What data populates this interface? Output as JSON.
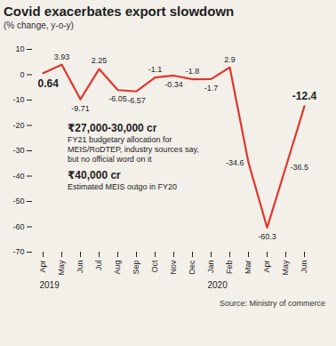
{
  "chart_data": {
    "type": "line",
    "title": "Covid exacerbates export slowdown",
    "subtitle": "(% change, y-o-y)",
    "categories": [
      "Apr",
      "May",
      "Jun",
      "Jul",
      "Aug",
      "Sep",
      "Oct",
      "Nov",
      "Dec",
      "Jan",
      "Feb",
      "Mar",
      "Apr",
      "May",
      "Jun"
    ],
    "year_labels": [
      {
        "text": "2019",
        "from": 0
      },
      {
        "text": "2020",
        "from": 9
      }
    ],
    "values": [
      0.64,
      3.93,
      -9.71,
      2.25,
      -6.05,
      -6.57,
      -1.1,
      -0.34,
      -1.8,
      -1.7,
      2.9,
      -34.6,
      -60.3,
      -36.5,
      -12.4
    ],
    "color": "#e0362c",
    "ylim": [
      -70,
      10
    ],
    "yticks": [
      -70,
      -60,
      -50,
      -40,
      -30,
      -20,
      -10,
      0,
      10
    ],
    "grid": false,
    "data_labels": true,
    "annotations": [
      {
        "title": "₹27,000-30,000 cr",
        "text": "FY21 budgetary allocation for MEIS/RoDTEP, industry sources say, but no official word on it"
      },
      {
        "title": "₹40,000 cr",
        "text": "Estimated MEIS outgo in FY20"
      }
    ],
    "source": "Source: Ministry of commerce"
  }
}
